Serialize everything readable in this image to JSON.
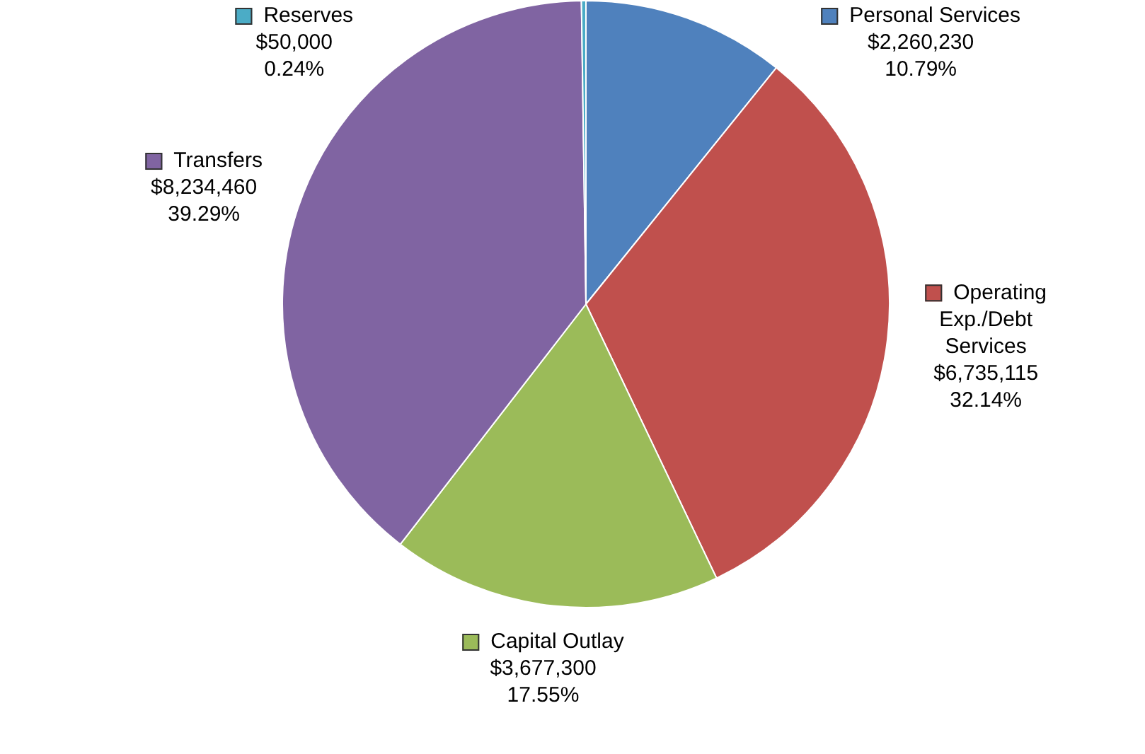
{
  "chart_data": {
    "type": "pie",
    "categories": [
      "Personal Services",
      "Operating Exp./Debt Services",
      "Capital Outlay",
      "Transfers",
      "Reserves"
    ],
    "values": [
      2260230,
      6735115,
      3677300,
      8234460,
      50000
    ],
    "colors": [
      "#4f81bd",
      "#c0504d",
      "#9bbb59",
      "#8064a2",
      "#4bacc6"
    ],
    "value_labels": [
      "$2,260,230\n10.79%",
      "$6,735,115\n32.14%",
      "$3,677,300\n17.55%",
      "$8,234,460\n39.29%",
      "$50,000\n0.24%"
    ],
    "legend": "right"
  }
}
